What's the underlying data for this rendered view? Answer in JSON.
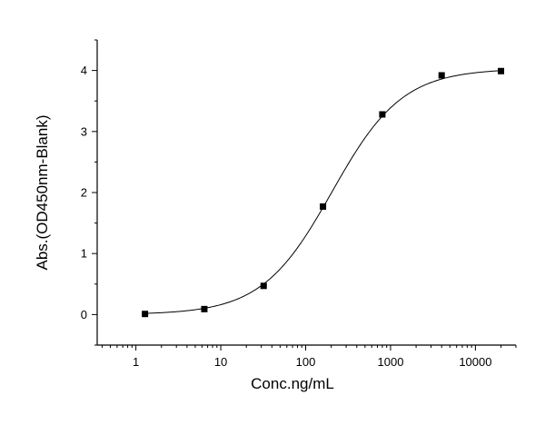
{
  "chart_data": {
    "type": "scatter",
    "xlabel": "Conc.ng/mL",
    "ylabel": "Abs.(OD450nm-Blank)",
    "x_scale": "log",
    "xlim": [
      0.35,
      30000
    ],
    "ylim": [
      -0.5,
      4.5
    ],
    "x_ticks": [
      1,
      10,
      100,
      1000,
      10000
    ],
    "x_tick_labels": [
      "1",
      "10",
      "100",
      "1000",
      "10000"
    ],
    "y_ticks": [
      0,
      1,
      2,
      3,
      4
    ],
    "y_tick_labels": [
      "0",
      "1",
      "2",
      "3",
      "4"
    ],
    "grid": false,
    "series": [
      {
        "points": [
          {
            "x": 1.28,
            "y": 0.01
          },
          {
            "x": 6.4,
            "y": 0.09
          },
          {
            "x": 32,
            "y": 0.47
          },
          {
            "x": 160,
            "y": 1.77
          },
          {
            "x": 800,
            "y": 3.28
          },
          {
            "x": 4000,
            "y": 3.92
          },
          {
            "x": 20000,
            "y": 3.99
          }
        ]
      }
    ],
    "fit_curve": {
      "model": "4PL",
      "bottom": 0.0,
      "top": 4.03,
      "ec50": 205,
      "hill": 1.05
    }
  }
}
